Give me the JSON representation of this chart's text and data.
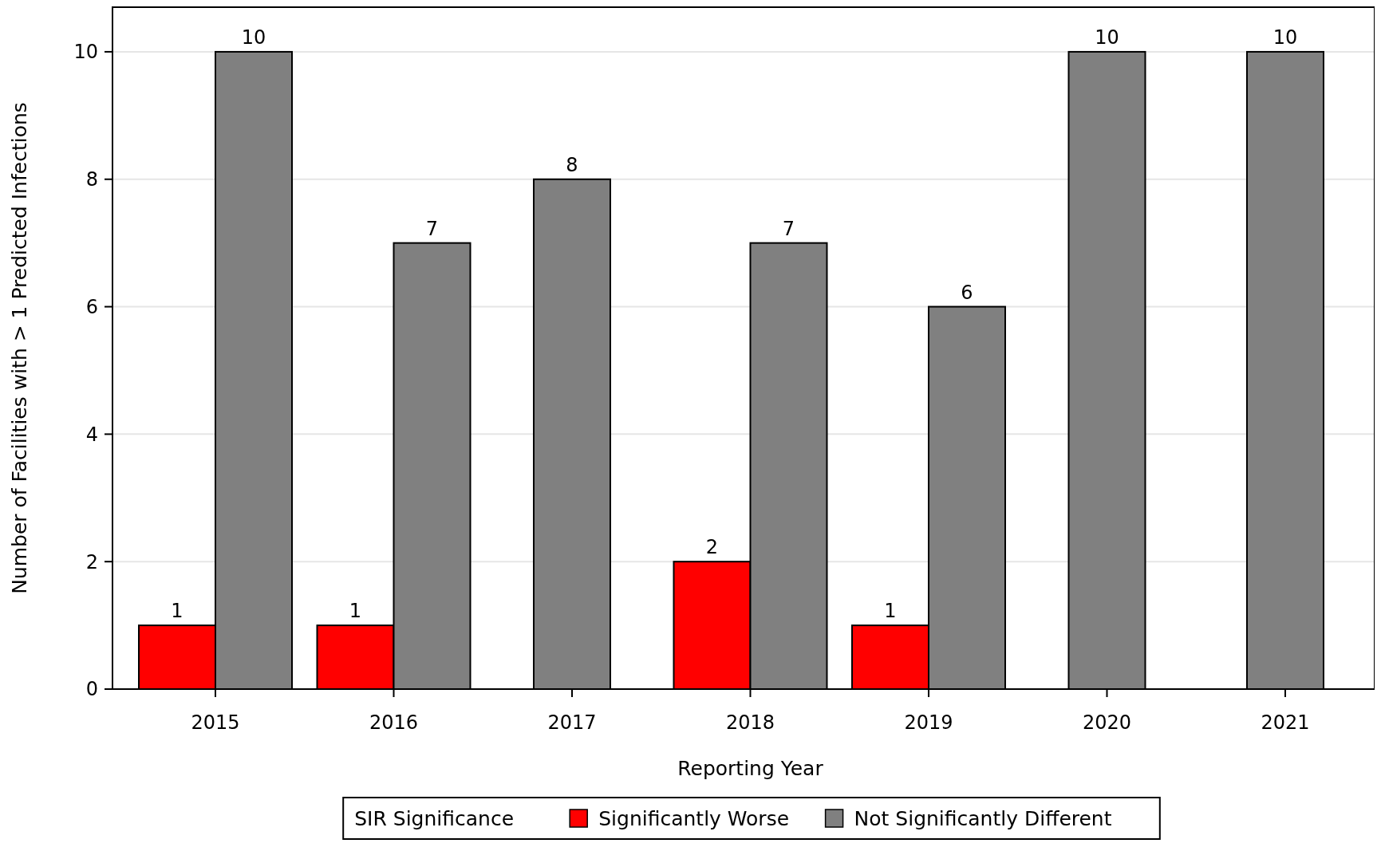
{
  "chart_data": {
    "type": "bar",
    "xlabel": "Reporting Year",
    "ylabel": "Number of Facilities with > 1 Predicted Infections",
    "legend_title": "SIR Significance",
    "categories": [
      "2015",
      "2016",
      "2017",
      "2018",
      "2019",
      "2020",
      "2021"
    ],
    "series": [
      {
        "name": "Significantly Worse",
        "color": "#ff0000",
        "values": [
          1,
          1,
          null,
          2,
          1,
          null,
          null
        ]
      },
      {
        "name": "Not Significantly Different",
        "color": "#808080",
        "values": [
          10,
          7,
          8,
          7,
          6,
          10,
          10
        ]
      }
    ],
    "ylim": [
      0,
      10.7
    ],
    "yticks": [
      0,
      2,
      4,
      6,
      8,
      10
    ],
    "grid": "y",
    "legend": "bottom",
    "data_labels": true
  }
}
